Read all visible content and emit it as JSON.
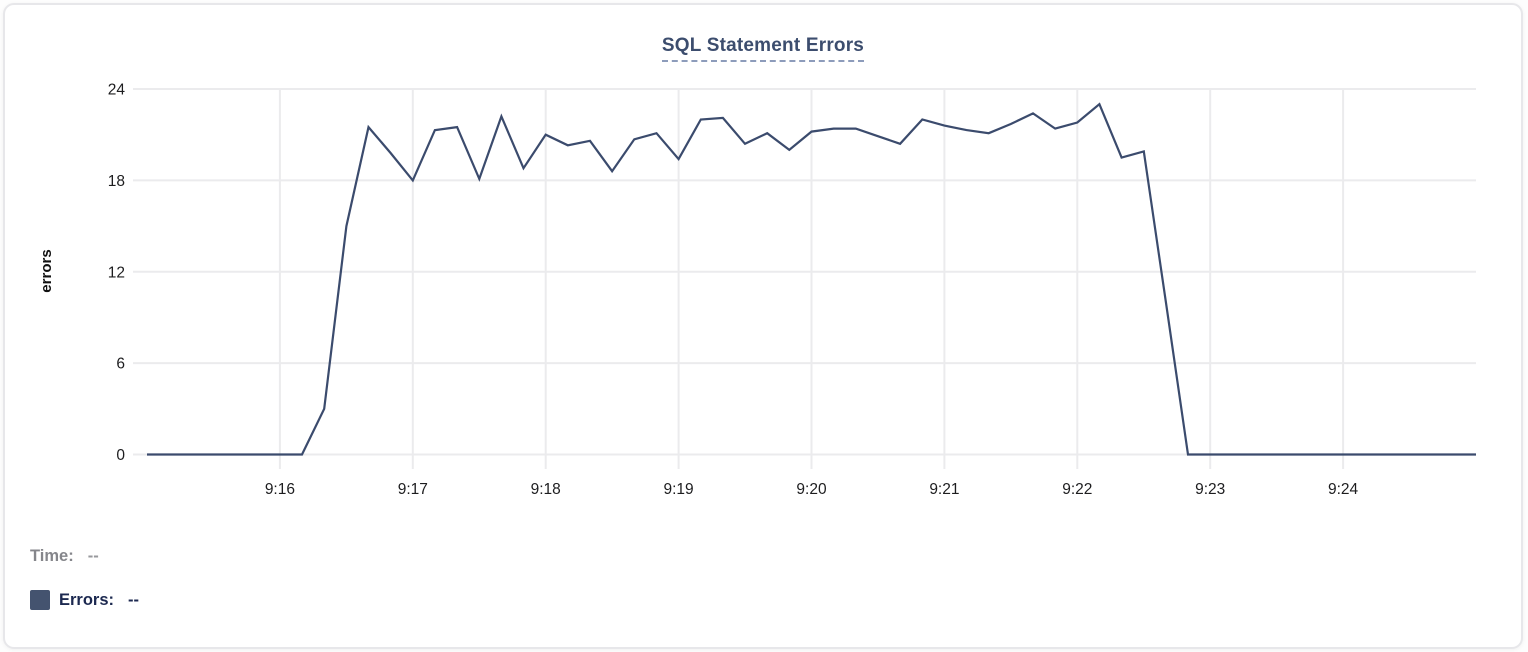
{
  "card": {
    "title": "SQL Statement Errors"
  },
  "legend": {
    "time_label": "Time:",
    "time_value": "--",
    "errors_label": "Errors:",
    "errors_value": "--",
    "swatch_color": "#44536f"
  },
  "colors": {
    "line": "#3b4b6d",
    "gridline": "#ebebed",
    "axis_text": "#1d1d1f",
    "title_text": "#3c4d6e",
    "title_underline": "#8d9cbb",
    "card_border": "#e7e7ea"
  },
  "chart_data": {
    "type": "line",
    "title": "SQL Statement Errors",
    "xlabel": "",
    "ylabel": "errors",
    "ylim": [
      0,
      24
    ],
    "y_ticks": [
      0,
      6,
      12,
      18,
      24
    ],
    "x_tick_labels": [
      "9:16",
      "9:17",
      "9:18",
      "9:19",
      "9:20",
      "9:21",
      "9:22",
      "9:23",
      "9:24"
    ],
    "x_range": [
      "9:15:00",
      "9:25:00"
    ],
    "grid": true,
    "legend_position": "bottom-left",
    "series": [
      {
        "name": "Errors",
        "color": "#3b4b6d",
        "start_time": "9:15:00",
        "interval_seconds": 10,
        "values": [
          0,
          0,
          0,
          0,
          0,
          0,
          0,
          0,
          3,
          15,
          21.5,
          19.8,
          18,
          21.3,
          21.5,
          18.1,
          22.2,
          18.8,
          21,
          20.3,
          20.6,
          18.6,
          20.7,
          21.1,
          19.4,
          22,
          22.1,
          20.4,
          21.1,
          20,
          21.2,
          21.4,
          21.4,
          20.9,
          20.4,
          22,
          21.6,
          21.3,
          21.1,
          21.7,
          22.4,
          21.4,
          21.8,
          23,
          19.5,
          19.9,
          10,
          0,
          0,
          0,
          0,
          0,
          0,
          0,
          0,
          0,
          0,
          0,
          0,
          0,
          0
        ]
      }
    ]
  }
}
